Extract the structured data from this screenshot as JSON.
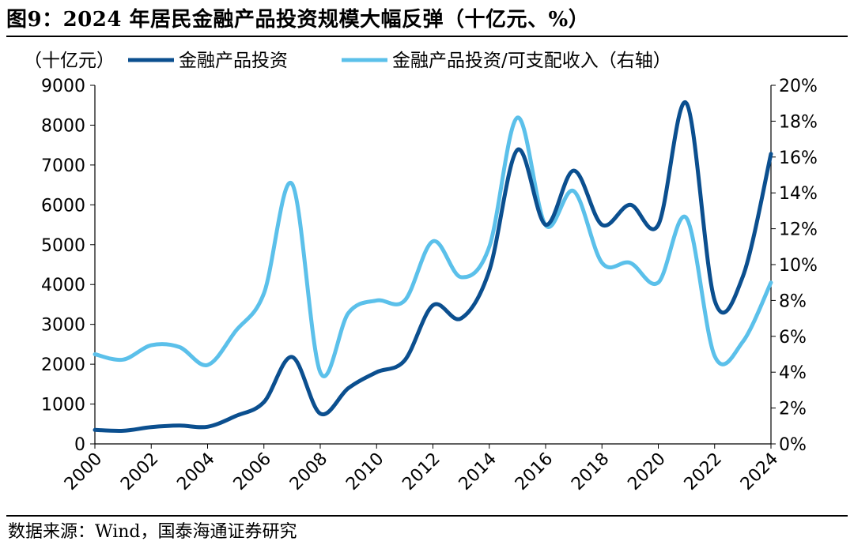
{
  "header": {
    "title": "图9：2024 年居民金融产品投资规模大幅反弹（十亿元、%）"
  },
  "footer": {
    "source": "数据来源：Wind，国泰海通证券研究"
  },
  "chart_data": {
    "type": "line",
    "left_axis_unit": "（十亿元）",
    "x": [
      2000,
      2001,
      2002,
      2003,
      2004,
      2005,
      2006,
      2007,
      2008,
      2009,
      2010,
      2011,
      2012,
      2013,
      2014,
      2015,
      2016,
      2017,
      2018,
      2019,
      2020,
      2021,
      2022,
      2023,
      2024
    ],
    "x_ticks": [
      "2000",
      "2002",
      "2004",
      "2006",
      "2008",
      "2010",
      "2012",
      "2014",
      "2016",
      "2018",
      "2020",
      "2022",
      "2024"
    ],
    "y_left_ticks": [
      "0",
      "1000",
      "2000",
      "3000",
      "4000",
      "5000",
      "6000",
      "7000",
      "8000",
      "9000"
    ],
    "y_right_ticks": [
      "0%",
      "2%",
      "4%",
      "6%",
      "8%",
      "10%",
      "12%",
      "14%",
      "16%",
      "18%",
      "20%"
    ],
    "ylim_left": [
      0,
      9000
    ],
    "ylim_right": [
      0,
      20
    ],
    "series": [
      {
        "name": "金融产品投资",
        "axis": "left",
        "color": "#0b4f8f",
        "values": [
          350,
          330,
          420,
          460,
          430,
          700,
          1050,
          2180,
          760,
          1400,
          1800,
          2100,
          3480,
          3150,
          4350,
          7380,
          5500,
          6860,
          5500,
          6000,
          5500,
          8550,
          3600,
          4200,
          7280
        ]
      },
      {
        "name": "金融产品投资/可支配收入（右轴）",
        "axis": "right",
        "color": "#5bc0ea",
        "values": [
          5.0,
          4.7,
          5.5,
          5.4,
          4.4,
          6.3,
          8.4,
          14.5,
          4.0,
          7.3,
          8.0,
          8.0,
          11.3,
          9.3,
          11.0,
          18.2,
          12.2,
          14.1,
          10.1,
          10.1,
          9.0,
          12.6,
          4.9,
          5.7,
          9.0
        ]
      }
    ],
    "legend_position": "top",
    "grid": false
  }
}
